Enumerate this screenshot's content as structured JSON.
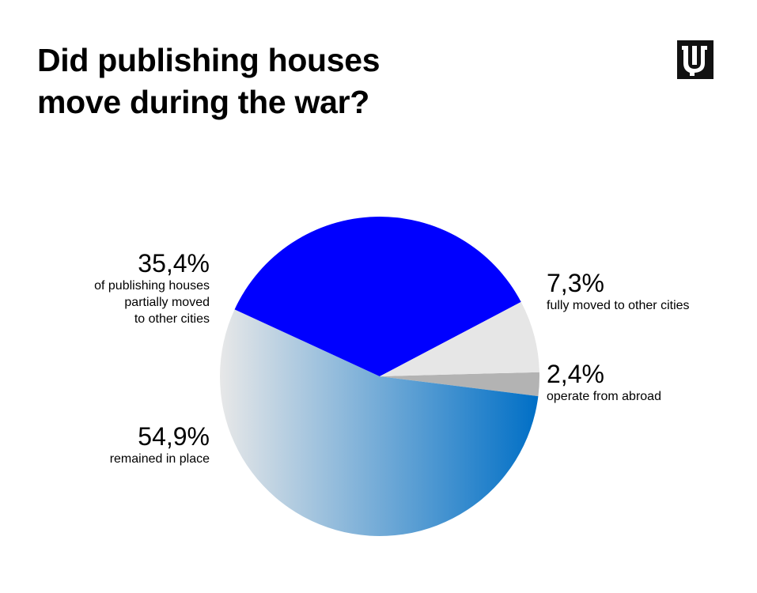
{
  "title_lines": [
    "Did publishing houses",
    "move during the war?"
  ],
  "chart_data": {
    "type": "pie",
    "title": "Did publishing houses move during the war?",
    "slices": [
      {
        "value": 2.4,
        "label": "2,4%",
        "description": [
          "operate from abroad"
        ],
        "color": "#b3b3b3"
      },
      {
        "value": 54.9,
        "label": "54,9%",
        "description": [
          "remained in place"
        ],
        "color": "gradient"
      },
      {
        "value": 35.4,
        "label": "35,4%",
        "description": [
          "of publishing houses",
          "partially moved",
          "to other cities"
        ],
        "color": "#0000ff"
      },
      {
        "value": 7.3,
        "label": "7,3%",
        "description": [
          "fully moved to other cities"
        ],
        "color": "#e6e6e6"
      }
    ],
    "gradient_colors": [
      "#e8e8e8",
      "#006fc6"
    ]
  }
}
